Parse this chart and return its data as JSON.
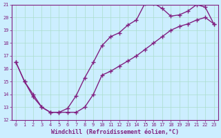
{
  "xlabel": "Windchill (Refroidissement éolien,°C)",
  "line1_x": [
    0,
    1,
    2,
    3,
    4,
    5,
    6,
    7,
    8,
    9,
    10,
    11,
    12,
    13,
    14,
    15,
    16,
    17,
    18,
    19,
    20,
    21,
    22,
    23
  ],
  "line1_y": [
    16.5,
    15.0,
    13.8,
    13.0,
    12.6,
    12.6,
    12.9,
    13.9,
    15.3,
    16.5,
    17.8,
    18.5,
    18.8,
    19.4,
    19.8,
    21.1,
    21.1,
    20.7,
    20.1,
    20.2,
    20.5,
    21.0,
    20.8,
    19.5
  ],
  "line2_x": [
    0,
    1,
    2,
    3,
    4,
    5,
    6,
    7,
    8,
    9,
    10,
    11,
    12,
    13,
    14,
    15,
    16,
    17,
    18,
    19,
    20,
    21,
    22,
    23
  ],
  "line2_y": [
    16.5,
    15.0,
    14.0,
    13.0,
    12.6,
    12.6,
    12.6,
    12.6,
    13.0,
    14.0,
    15.5,
    15.8,
    16.2,
    16.6,
    17.0,
    17.5,
    18.0,
    18.5,
    19.0,
    19.3,
    19.5,
    19.8,
    20.0,
    19.5
  ],
  "line_color": "#802080",
  "bg_color": "#cceeff",
  "grid_color": "#aaddcc",
  "ylim": [
    12,
    21
  ],
  "xlim_min": -0.5,
  "xlim_max": 23.5,
  "yticks": [
    12,
    13,
    14,
    15,
    16,
    17,
    18,
    19,
    20,
    21
  ],
  "xticks": [
    0,
    1,
    2,
    3,
    4,
    5,
    6,
    7,
    8,
    9,
    10,
    11,
    12,
    13,
    14,
    15,
    16,
    17,
    18,
    19,
    20,
    21,
    22,
    23
  ],
  "marker": "+",
  "markersize": 4,
  "linewidth": 1.0,
  "font_color": "#802080",
  "tick_fontsize": 5,
  "xlabel_fontsize": 6
}
